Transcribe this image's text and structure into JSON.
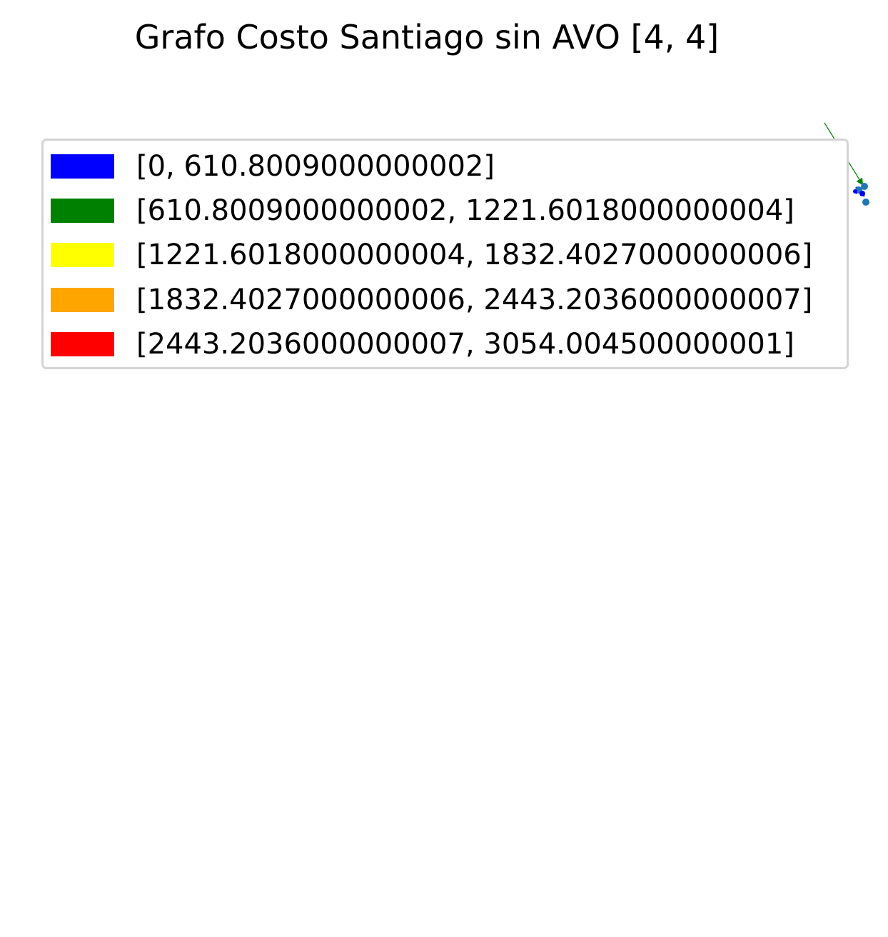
{
  "chart_data": {
    "type": "other",
    "title": "Grafo Costo Santiago sin AVO [4, 4]",
    "xlabel": "",
    "ylabel": "",
    "grid": false,
    "axes_visible": false,
    "legend_placement": "upper-left",
    "legend": [
      {
        "label": "[0, 610.8009000000002]",
        "color": "#0000ff"
      },
      {
        "label": "[610.8009000000002, 1221.6018000000004]",
        "color": "#008000"
      },
      {
        "label": "[1221.6018000000004, 1832.4027000000006]",
        "color": "#ffff00"
      },
      {
        "label": "[1832.4027000000006, 2443.2036000000007]",
        "color": "#ffa500"
      },
      {
        "label": "[2443.2036000000007, 3054.004500000001]",
        "color": "#ff0000"
      }
    ],
    "node_color": "#1f77b4"
  }
}
